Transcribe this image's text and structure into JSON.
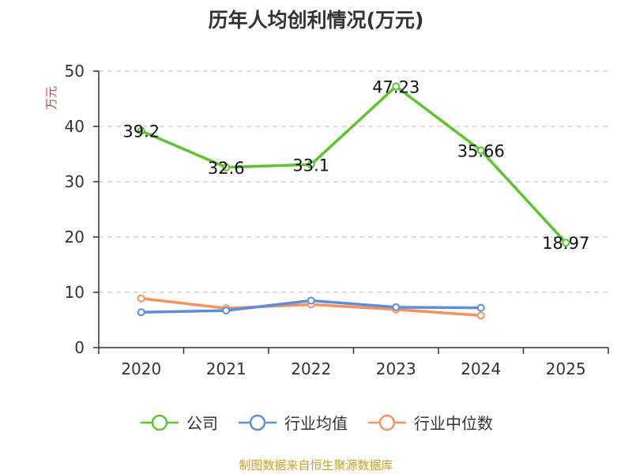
{
  "title": "历年人均创利情况(万元)",
  "source": "制图数据来自恒生聚源数据库",
  "chart_data": {
    "type": "line",
    "title": "历年人均创利情况(万元)",
    "ylabel": "万元",
    "ylim": [
      0,
      50
    ],
    "yticks": [
      0,
      10,
      20,
      30,
      40,
      50
    ],
    "categories": [
      "2020",
      "2021",
      "2022",
      "2023",
      "2024",
      "2025"
    ],
    "grid": true,
    "legend_position": "bottom",
    "series": [
      {
        "name": "公司",
        "color": "#5cc42f",
        "values": [
          39.2,
          32.6,
          33.1,
          47.23,
          35.66,
          18.97
        ],
        "labels": [
          "39.2",
          "32.6",
          "33.1",
          "47.23",
          "35.66",
          "18.97"
        ]
      },
      {
        "name": "行业均值",
        "color": "#5b8ddc",
        "values": [
          6.4,
          6.7,
          8.5,
          7.3,
          7.2,
          null
        ]
      },
      {
        "name": "行业中位数",
        "color": "#f5925e",
        "values": [
          8.9,
          7.1,
          7.8,
          6.9,
          5.8,
          null
        ]
      }
    ]
  }
}
